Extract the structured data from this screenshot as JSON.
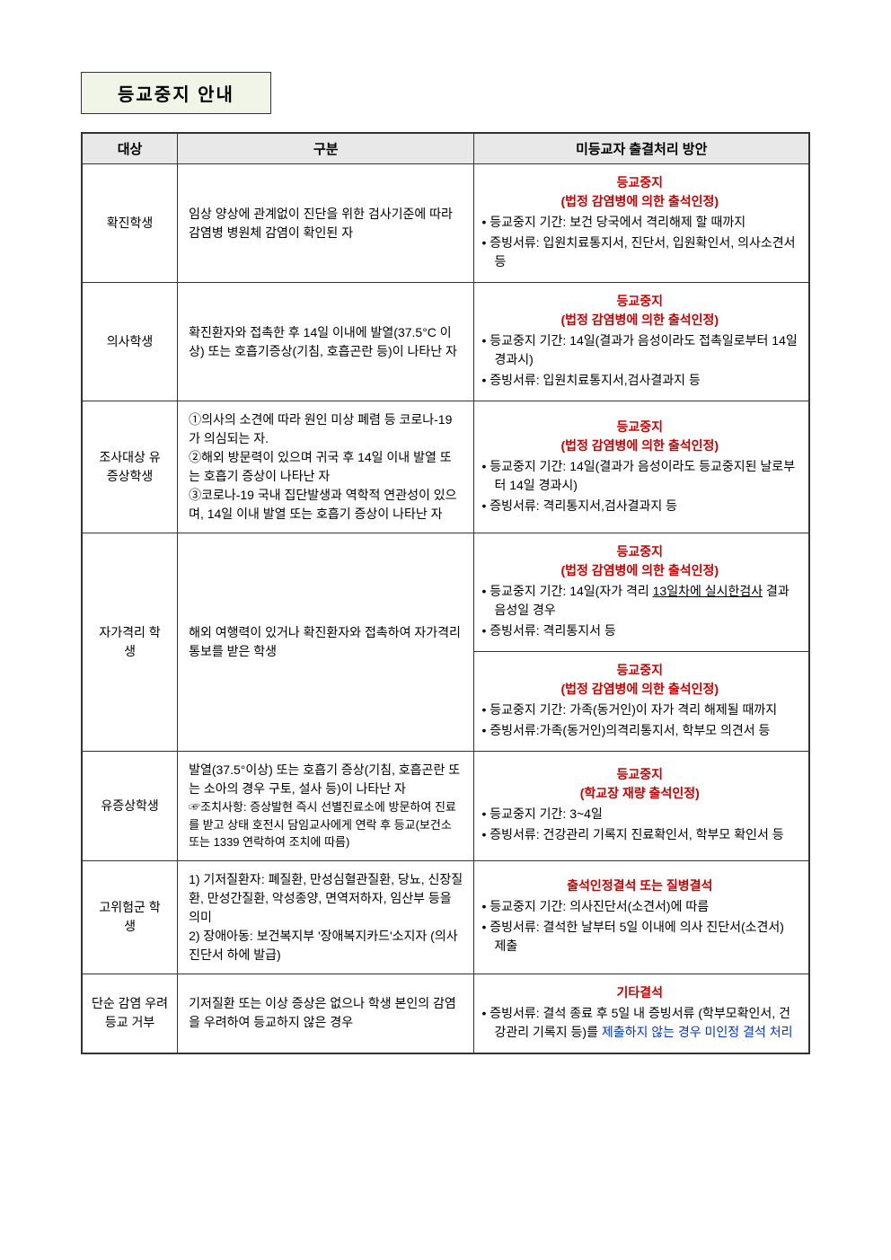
{
  "title": "등교중지 안내",
  "headers": {
    "col1": "대상",
    "col2": "구분",
    "col3": "미등교자 출결처리 방안"
  },
  "rows": {
    "r1": {
      "target": "확진학생",
      "desc": "임상 양상에 관계없이 진단을 위한 검사기준에 따라 감염병 병원체 감염이 확인된 자",
      "action_title1": "등교중지",
      "action_title2": "(법정 감염병에 의한 출석인정)",
      "bullet1": "• 등교중지 기간: 보건 당국에서 격리해제 할 때까지",
      "bullet2": "• 증빙서류: 입원치료통지서, 진단서, 입원확인서, 의사소견서 등"
    },
    "r2": {
      "target": "의사학생",
      "desc": "확진환자와 접촉한 후 14일 이내에 발열(37.5°C 이상) 또는 호흡기증상(기침, 호흡곤란 등)이 나타난 자",
      "action_title1": "등교중지",
      "action_title2": "(법정 감염병에 의한 출석인정)",
      "bullet1": "• 등교중지 기간: 14일(결과가 음성이라도 접촉일로부터 14일 경과시)",
      "bullet2": "• 증빙서류: 입원치료통지서,검사결과지 등"
    },
    "r3": {
      "target": "조사대상 유증상학생",
      "desc_l1": "①의사의 소견에 따라 원인 미상 폐렴 등 코로나-19가 의심되는 자.",
      "desc_l2": "②해외 방문력이 있으며 귀국 후 14일 이내 발열 또는 호흡기 증상이 나타난 자",
      "desc_l3": "③코로나-19 국내 집단발생과 역학적 연관성이 있으며, 14일 이내 발열 또는 호흡기 증상이 나타난 자",
      "action_title1": "등교중지",
      "action_title2": "(법정 감염병에 의한 출석인정)",
      "bullet1": "• 등교중지 기간: 14일(결과가 음성이라도 등교중지된 날로부터 14일 경과시)",
      "bullet2": "• 증빙서류: 격리통지서,검사결과지 등"
    },
    "r4": {
      "target": "자가격리 학생",
      "desc": "해외 여행력이 있거나 확진환자와 접촉하여 자가격리 통보를 받은 학생",
      "a": {
        "action_title1": "등교중지",
        "action_title2": "(법정 감염병에 의한 출석인정)",
        "bullet1_part1": "• 등교중지 기간: 14일(자가 격리 ",
        "bullet1_underline": "13일차에 실시한검사",
        "bullet1_part2": " 결과 음성일 경우",
        "bullet2": "• 증빙서류: 격리통지서 등"
      },
      "b": {
        "action_title1": "등교중지",
        "action_title2": "(법정 감염병에 의한 출석인정)",
        "bullet1": "• 등교중지 기간: 가족(동거인)이 자가 격리 해제될 때까지",
        "bullet2": "• 증빙서류:가족(동거인)의격리통지서, 학부모 의견서 등"
      }
    },
    "r5": {
      "target": "유증상학생",
      "desc_l1": "발열(37.5°이상) 또는 호흡기 증상(기침, 호흡곤란 또는 소아의 경우 구토, 설사 등)이 나타난 자",
      "desc_l2": "☞조치사항: 증상발현 즉시 선별진료소에 방문하여 진료를 받고 상태 호전시 담임교사에게 연락 후 등교(보건소 또는 1339 연락하여 조치에 따름)",
      "action_title1": "등교중지",
      "action_title2": "(학교장 재량 출석인정)",
      "bullet1": "• 등교중지 기간: 3~4일",
      "bullet2": "• 증빙서류: 건강관리 기록지 진료확인서, 학부모 확인서 등"
    },
    "r6": {
      "target": "고위험군 학생",
      "desc_l1": "1) 기저질환자: 폐질환, 만성심혈관질환, 당뇨, 신장질환, 만성간질환, 악성종양, 면역저하자, 임산부 등을 의미",
      "desc_l2": "2) 장애아동: 보건복지부 '장애복지카드'소지자 (의사진단서 하에 발급)",
      "action_title1": "출석인정결석 또는 질병결석",
      "bullet1": "• 등교중지 기간: 의사진단서(소견서)에 따름",
      "bullet2": "• 증빙서류: 결석한 날부터 5일 이내에 의사 진단서(소견서) 제출"
    },
    "r7": {
      "target": "단순 감염 우려 등교 거부",
      "desc": "기저질환 또는 이상 증상은 없으나 학생 본인의 감염을 우려하여 등교하지 않은 경우",
      "action_title1": "기타결석",
      "bullet1_part1": "• 증빙서류: 결석 종료 후 5일 내 증빙서류 (학부모확인서, 건강관리 기록지 등)를 ",
      "bullet1_blue": "제출하지 않는 경우 미인정 결석 처리"
    }
  }
}
